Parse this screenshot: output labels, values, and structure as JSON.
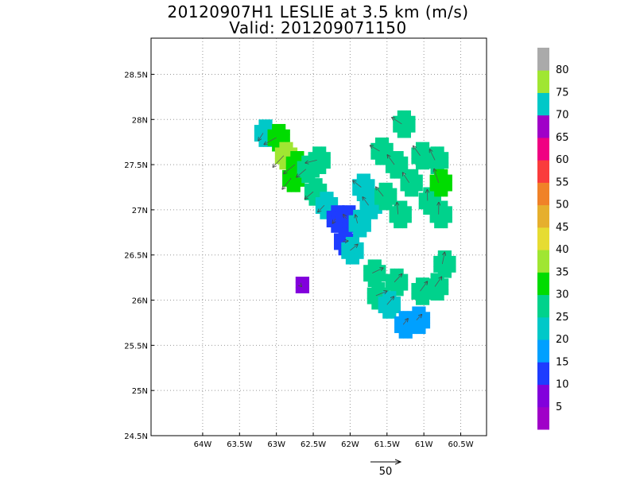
{
  "chart_data": {
    "type": "heatmap",
    "title": "20120907H1 LESLIE at 3.5 km (m/s)",
    "subtitle": "Valid: 201209071150",
    "xlabel": "",
    "ylabel": "",
    "x_range": [
      -64.7,
      -60.15
    ],
    "y_range": [
      24.5,
      28.9
    ],
    "x_ticks": [
      {
        "value": -64.0,
        "label": "64W"
      },
      {
        "value": -63.5,
        "label": "63.5W"
      },
      {
        "value": -63.0,
        "label": "63W"
      },
      {
        "value": -62.5,
        "label": "62.5W"
      },
      {
        "value": -62.0,
        "label": "62W"
      },
      {
        "value": -61.5,
        "label": "61.5W"
      },
      {
        "value": -61.0,
        "label": "61W"
      },
      {
        "value": -60.5,
        "label": "60.5W"
      }
    ],
    "y_ticks": [
      {
        "value": 24.5,
        "label": "24.5N"
      },
      {
        "value": 25.0,
        "label": "25N"
      },
      {
        "value": 25.5,
        "label": "25.5N"
      },
      {
        "value": 26.0,
        "label": "26N"
      },
      {
        "value": 26.5,
        "label": "26.5N"
      },
      {
        "value": 27.0,
        "label": "27N"
      },
      {
        "value": 27.5,
        "label": "27.5N"
      },
      {
        "value": 28.0,
        "label": "28N"
      },
      {
        "value": 28.5,
        "label": "28.5N"
      }
    ],
    "grid": true,
    "colorbar": {
      "bins": [
        {
          "label": "",
          "color": "#a000c8"
        },
        {
          "label": "5",
          "color": "#8200dc"
        },
        {
          "label": "10",
          "color": "#1e3cff"
        },
        {
          "label": "15",
          "color": "#00a0ff"
        },
        {
          "label": "20",
          "color": "#00c8c8"
        },
        {
          "label": "25",
          "color": "#00d28c"
        },
        {
          "label": "30",
          "color": "#00dc00"
        },
        {
          "label": "35",
          "color": "#a0e632"
        },
        {
          "label": "40",
          "color": "#e6dc32"
        },
        {
          "label": "45",
          "color": "#e6af2d"
        },
        {
          "label": "50",
          "color": "#f08228"
        },
        {
          "label": "55",
          "color": "#fa3c3c"
        },
        {
          "label": "60",
          "color": "#f00082"
        },
        {
          "label": "65",
          "color": "#a000c8"
        },
        {
          "label": "70",
          "color": "#00c8c8"
        },
        {
          "label": "75",
          "color": "#a0e632"
        },
        {
          "label": "80",
          "color": "#aaaaaa"
        }
      ]
    },
    "wind_field": [
      {
        "lon": -63.18,
        "lat": 27.85,
        "speed": 20
      },
      {
        "lon": -63.0,
        "lat": 27.8,
        "speed": 32
      },
      {
        "lon": -62.9,
        "lat": 27.6,
        "speed": 36
      },
      {
        "lon": -62.75,
        "lat": 27.5,
        "speed": 32
      },
      {
        "lon": -62.8,
        "lat": 27.35,
        "speed": 32
      },
      {
        "lon": -62.6,
        "lat": 27.45,
        "speed": 28
      },
      {
        "lon": -62.45,
        "lat": 27.55,
        "speed": 27
      },
      {
        "lon": -62.5,
        "lat": 27.2,
        "speed": 25
      },
      {
        "lon": -62.35,
        "lat": 27.05,
        "speed": 21
      },
      {
        "lon": -62.2,
        "lat": 26.9,
        "speed": 12
      },
      {
        "lon": -62.05,
        "lat": 26.9,
        "speed": 12
      },
      {
        "lon": -62.1,
        "lat": 26.65,
        "speed": 12
      },
      {
        "lon": -61.9,
        "lat": 26.85,
        "speed": 20
      },
      {
        "lon": -61.75,
        "lat": 27.05,
        "speed": 23
      },
      {
        "lon": -61.85,
        "lat": 27.25,
        "speed": 24
      },
      {
        "lon": -61.55,
        "lat": 27.15,
        "speed": 27
      },
      {
        "lon": -61.35,
        "lat": 26.95,
        "speed": 27
      },
      {
        "lon": -61.6,
        "lat": 27.65,
        "speed": 25
      },
      {
        "lon": -61.4,
        "lat": 27.5,
        "speed": 27
      },
      {
        "lon": -61.2,
        "lat": 27.3,
        "speed": 27
      },
      {
        "lon": -61.05,
        "lat": 27.6,
        "speed": 27
      },
      {
        "lon": -61.3,
        "lat": 27.95,
        "speed": 27
      },
      {
        "lon": -60.85,
        "lat": 27.55,
        "speed": 27
      },
      {
        "lon": -60.95,
        "lat": 27.1,
        "speed": 25
      },
      {
        "lon": -60.8,
        "lat": 26.95,
        "speed": 27
      },
      {
        "lon": -60.8,
        "lat": 27.3,
        "speed": 33
      },
      {
        "lon": -61.7,
        "lat": 26.3,
        "speed": 27
      },
      {
        "lon": -61.65,
        "lat": 26.05,
        "speed": 27
      },
      {
        "lon": -61.4,
        "lat": 26.2,
        "speed": 25
      },
      {
        "lon": -61.5,
        "lat": 25.95,
        "speed": 24
      },
      {
        "lon": -60.75,
        "lat": 26.4,
        "speed": 27
      },
      {
        "lon": -60.85,
        "lat": 26.15,
        "speed": 27
      },
      {
        "lon": -61.05,
        "lat": 26.1,
        "speed": 27
      },
      {
        "lon": -62.68,
        "lat": 26.17,
        "speed": 5
      },
      {
        "lon": -61.1,
        "lat": 25.78,
        "speed": 17
      },
      {
        "lon": -61.28,
        "lat": 25.73,
        "speed": 17
      },
      {
        "lon": -62.0,
        "lat": 26.55,
        "speed": 22
      }
    ],
    "vector_reference": {
      "label": "50"
    }
  }
}
